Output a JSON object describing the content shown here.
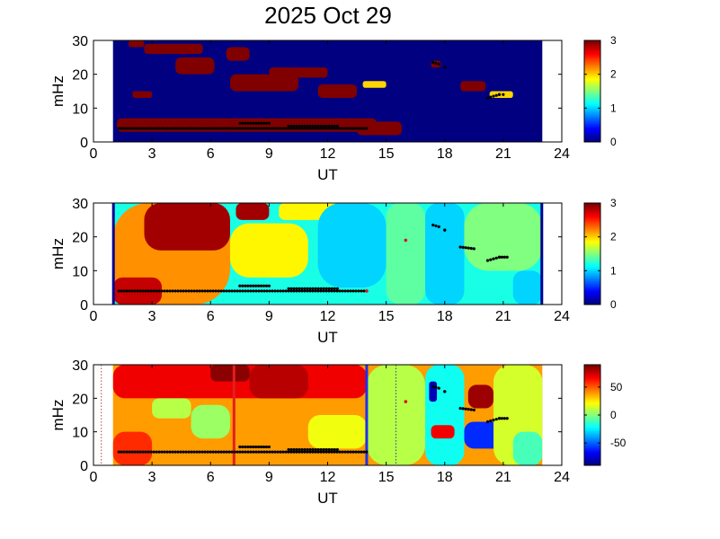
{
  "figure": {
    "title": "2025 Oct 29"
  },
  "chart_data": [
    {
      "type": "heatmap",
      "xlabel": "UT",
      "ylabel": "mHz",
      "xlim": [
        0,
        24
      ],
      "ylim": [
        0,
        30
      ],
      "xticks": [
        0,
        3,
        6,
        9,
        12,
        15,
        18,
        21,
        24
      ],
      "yticks": [
        0,
        10,
        20,
        30
      ],
      "data_extent_ut": [
        1,
        23
      ],
      "colorbar": {
        "min": 0,
        "max": 3,
        "ticks": [
          0,
          1,
          2,
          3
        ]
      },
      "background_value": 0,
      "blobs": [
        {
          "x": [
            1.2,
            14.5
          ],
          "y": [
            3,
            7
          ],
          "value": 3
        },
        {
          "x": [
            13.5,
            15.8
          ],
          "y": [
            2,
            6
          ],
          "value": 3
        },
        {
          "x": [
            2.6,
            5.6
          ],
          "y": [
            26,
            29
          ],
          "value": 3
        },
        {
          "x": [
            4.2,
            6.2
          ],
          "y": [
            20,
            25
          ],
          "value": 3
        },
        {
          "x": [
            6.8,
            8.0
          ],
          "y": [
            24,
            28
          ],
          "value": 3
        },
        {
          "x": [
            7.0,
            10.5
          ],
          "y": [
            15,
            20
          ],
          "value": 3
        },
        {
          "x": [
            9.0,
            12.0
          ],
          "y": [
            19,
            22
          ],
          "value": 3
        },
        {
          "x": [
            11.5,
            13.5
          ],
          "y": [
            13,
            17
          ],
          "value": 3
        },
        {
          "x": [
            2.0,
            3.0
          ],
          "y": [
            13,
            15
          ],
          "value": 3
        },
        {
          "x": [
            1.8,
            2.6
          ],
          "y": [
            28,
            30
          ],
          "value": 3
        },
        {
          "x": [
            13.8,
            15.0
          ],
          "y": [
            16,
            18
          ],
          "value": 2
        },
        {
          "x": [
            18.8,
            20.1
          ],
          "y": [
            15,
            18
          ],
          "value": 3
        },
        {
          "x": [
            17.3,
            17.8
          ],
          "y": [
            22,
            24
          ],
          "value": 3
        },
        {
          "x": [
            20.3,
            21.5
          ],
          "y": [
            13,
            15
          ],
          "value": 2
        }
      ],
      "points": [
        {
          "x": [
            1.3,
            14.0
          ],
          "y": [
            4,
            4
          ]
        },
        {
          "x": [
            7.5,
            9.0
          ],
          "y": [
            5.5,
            5.5
          ]
        },
        {
          "x": [
            10.0,
            12.5
          ],
          "y": [
            4.7,
            4.7
          ]
        },
        {
          "x": [
            17.4,
            17.7
          ],
          "y": [
            23.5,
            23
          ]
        },
        {
          "x": [
            18.0,
            18.0
          ],
          "y": [
            22,
            22
          ]
        },
        {
          "x": [
            20.2,
            20.8
          ],
          "y": [
            13,
            14
          ]
        },
        {
          "x": [
            20.8,
            21.0
          ],
          "y": [
            14,
            14
          ]
        }
      ]
    },
    {
      "type": "heatmap",
      "xlabel": "UT",
      "ylabel": "mHz",
      "xlim": [
        0,
        24
      ],
      "ylim": [
        0,
        30
      ],
      "xticks": [
        0,
        3,
        6,
        9,
        12,
        15,
        18,
        21,
        24
      ],
      "yticks": [
        0,
        10,
        20,
        30
      ],
      "data_extent_ut": [
        1,
        23
      ],
      "colorbar": {
        "min": 0,
        "max": 3,
        "ticks": [
          0,
          1,
          2,
          3
        ]
      },
      "background_value": 1.2,
      "blobs": [
        {
          "x": [
            1.0,
            7.0
          ],
          "y": [
            0,
            30
          ],
          "value": 2.2
        },
        {
          "x": [
            2.6,
            7.0
          ],
          "y": [
            16,
            30
          ],
          "value": 2.9
        },
        {
          "x": [
            1.0,
            3.5
          ],
          "y": [
            0,
            8
          ],
          "value": 2.8
        },
        {
          "x": [
            7.3,
            9.0
          ],
          "y": [
            25,
            30
          ],
          "value": 2.9
        },
        {
          "x": [
            7.0,
            11.0
          ],
          "y": [
            8,
            24
          ],
          "value": 1.9
        },
        {
          "x": [
            9.5,
            12.5
          ],
          "y": [
            25,
            30
          ],
          "value": 1.9
        },
        {
          "x": [
            11.5,
            15.0
          ],
          "y": [
            5,
            30
          ],
          "value": 1.0
        },
        {
          "x": [
            15.0,
            17.0
          ],
          "y": [
            0,
            30
          ],
          "value": 1.4
        },
        {
          "x": [
            17.0,
            19.0
          ],
          "y": [
            0,
            30
          ],
          "value": 1.0
        },
        {
          "x": [
            19.0,
            23.0
          ],
          "y": [
            10,
            30
          ],
          "value": 1.5
        },
        {
          "x": [
            21.5,
            23.0
          ],
          "y": [
            0,
            10
          ],
          "value": 1.0
        }
      ],
      "points": [
        {
          "x": [
            1.3,
            14.0
          ],
          "y": [
            4,
            4
          ]
        },
        {
          "x": [
            7.5,
            9.0
          ],
          "y": [
            5.5,
            5.5
          ]
        },
        {
          "x": [
            10.0,
            12.5
          ],
          "y": [
            4.7,
            4.7
          ]
        },
        {
          "x": [
            17.4,
            17.7
          ],
          "y": [
            23.5,
            23
          ]
        },
        {
          "x": [
            18.0,
            18.0
          ],
          "y": [
            22,
            22
          ]
        },
        {
          "x": [
            18.8,
            19.5
          ],
          "y": [
            17,
            16.5
          ]
        },
        {
          "x": [
            20.2,
            20.8
          ],
          "y": [
            13,
            14
          ]
        },
        {
          "x": [
            20.8,
            21.2
          ],
          "y": [
            14,
            14
          ]
        }
      ],
      "red_points": [
        {
          "x": 16.0,
          "y": 19
        },
        {
          "x": 14.0,
          "y": 4
        }
      ]
    },
    {
      "type": "heatmap",
      "xlabel": "UT",
      "ylabel": "mHz",
      "xlim": [
        0,
        24
      ],
      "ylim": [
        0,
        30
      ],
      "xticks": [
        0,
        3,
        6,
        9,
        12,
        15,
        18,
        21,
        24
      ],
      "yticks": [
        0,
        10,
        20,
        30
      ],
      "data_extent_ut": [
        1,
        23
      ],
      "colorbar": {
        "min": -90,
        "max": 90,
        "ticks": [
          50,
          0,
          -50
        ]
      },
      "background_value": 40,
      "blobs": [
        {
          "x": [
            1.0,
            14.0
          ],
          "y": [
            20,
            30
          ],
          "value": 70
        },
        {
          "x": [
            6.0,
            8.0
          ],
          "y": [
            25,
            30
          ],
          "value": 88
        },
        {
          "x": [
            8.0,
            11.0
          ],
          "y": [
            20,
            30
          ],
          "value": 80
        },
        {
          "x": [
            5.0,
            7.0
          ],
          "y": [
            8,
            18
          ],
          "value": 5
        },
        {
          "x": [
            3.0,
            5.0
          ],
          "y": [
            14,
            20
          ],
          "value": 10
        },
        {
          "x": [
            1.0,
            3.0
          ],
          "y": [
            0,
            10
          ],
          "value": 60
        },
        {
          "x": [
            11.0,
            14.0
          ],
          "y": [
            5,
            15
          ],
          "value": 20
        },
        {
          "x": [
            14.0,
            17.0
          ],
          "y": [
            0,
            30
          ],
          "value": 10
        },
        {
          "x": [
            17.0,
            19.0
          ],
          "y": [
            0,
            30
          ],
          "value": -20
        },
        {
          "x": [
            17.2,
            17.6
          ],
          "y": [
            19,
            25
          ],
          "value": -80
        },
        {
          "x": [
            17.3,
            18.5
          ],
          "y": [
            8,
            12
          ],
          "value": 70
        },
        {
          "x": [
            19.2,
            20.5
          ],
          "y": [
            17,
            24
          ],
          "value": 85
        },
        {
          "x": [
            19.0,
            21.0
          ],
          "y": [
            5,
            13
          ],
          "value": -60
        },
        {
          "x": [
            20.5,
            23.0
          ],
          "y": [
            0,
            30
          ],
          "value": 15
        },
        {
          "x": [
            21.5,
            23.0
          ],
          "y": [
            0,
            10
          ],
          "value": -10
        }
      ],
      "points": [
        {
          "x": [
            1.3,
            14.0
          ],
          "y": [
            4,
            4
          ]
        },
        {
          "x": [
            7.5,
            9.0
          ],
          "y": [
            5.5,
            5.5
          ]
        },
        {
          "x": [
            10.0,
            12.5
          ],
          "y": [
            4.7,
            4.7
          ]
        },
        {
          "x": [
            17.4,
            17.7
          ],
          "y": [
            23.5,
            23
          ]
        },
        {
          "x": [
            18.0,
            18.0
          ],
          "y": [
            22,
            22
          ]
        },
        {
          "x": [
            18.8,
            19.5
          ],
          "y": [
            17,
            16.5
          ]
        },
        {
          "x": [
            20.2,
            20.8
          ],
          "y": [
            13,
            14
          ]
        },
        {
          "x": [
            20.8,
            21.2
          ],
          "y": [
            14,
            14
          ]
        }
      ],
      "red_points": [
        {
          "x": 16.0,
          "y": 19
        }
      ],
      "vertical_lines": [
        {
          "x": 7.2,
          "color": "#e0201f",
          "style": "solid"
        },
        {
          "x": 14.0,
          "color": "#1f2ff0",
          "style": "solid"
        },
        {
          "x": 0.4,
          "color": "#c04040",
          "style": "dotted"
        },
        {
          "x": 15.5,
          "color": "#2040c0",
          "style": "dotted"
        }
      ]
    }
  ]
}
